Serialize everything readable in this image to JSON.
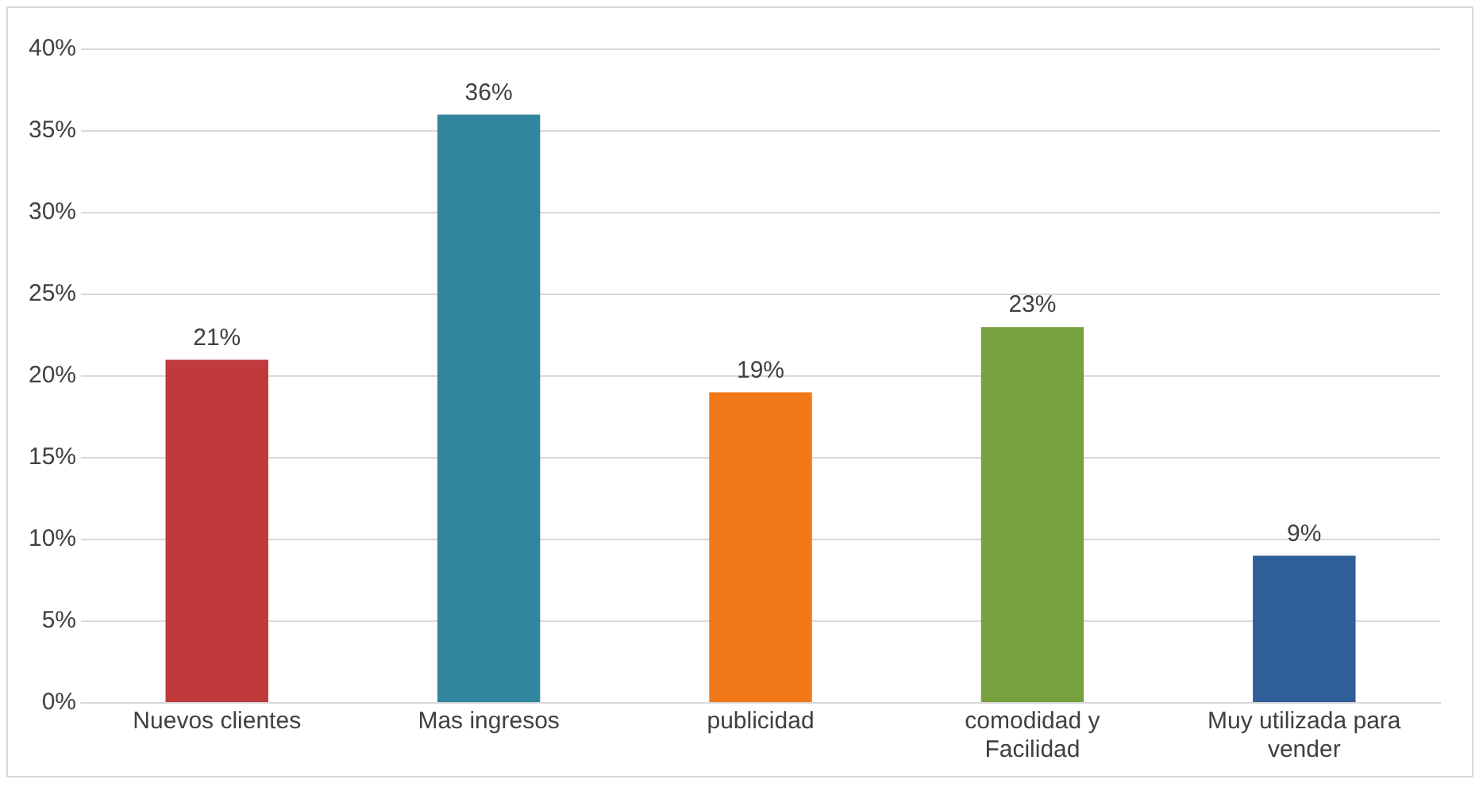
{
  "chart_data": {
    "type": "bar",
    "categories": [
      "Nuevos clientes",
      "Mas ingresos",
      "publicidad",
      "comodidad y Facilidad",
      "Muy utilizada para vender"
    ],
    "values": [
      21,
      36,
      19,
      23,
      9
    ],
    "colors": [
      "#c0393b",
      "#31859c",
      "#f07818",
      "#77a040",
      "#2f5f98"
    ],
    "value_labels": [
      "21%",
      "36%",
      "19%",
      "23%",
      "9%"
    ],
    "ylim": [
      0,
      40
    ],
    "yticks": [
      {
        "value": 0,
        "label": "0%"
      },
      {
        "value": 5,
        "label": "5%"
      },
      {
        "value": 10,
        "label": "10%"
      },
      {
        "value": 15,
        "label": "15%"
      },
      {
        "value": 20,
        "label": "20%"
      },
      {
        "value": 25,
        "label": "25%"
      },
      {
        "value": 30,
        "label": "30%"
      },
      {
        "value": 35,
        "label": "35%"
      },
      {
        "value": 40,
        "label": "40%"
      }
    ],
    "grid": "y",
    "legend": false
  }
}
